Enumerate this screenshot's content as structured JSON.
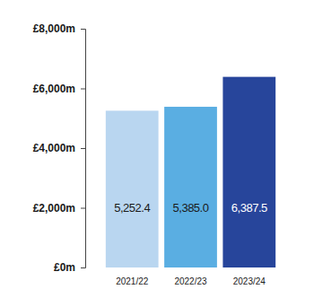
{
  "chart_data": {
    "type": "bar",
    "categories": [
      "2021/22",
      "2022/23",
      "2023/24"
    ],
    "values": [
      5252.4,
      5385.0,
      6387.5
    ],
    "value_labels": [
      "5,252.4",
      "5,385.0",
      "6,387.5"
    ],
    "colors": [
      "#b9d6f0",
      "#5aaee2",
      "#27459b"
    ],
    "ylim": [
      0,
      8000
    ],
    "yticks": [
      {
        "value": 0,
        "label": "£0m"
      },
      {
        "value": 2000,
        "label": "£2,000m"
      },
      {
        "value": 4000,
        "label": "£4,000m"
      },
      {
        "value": 6000,
        "label": "£6,000m"
      },
      {
        "value": 8000,
        "label": "£8,000m"
      }
    ],
    "grid": false,
    "data_labels": true
  }
}
